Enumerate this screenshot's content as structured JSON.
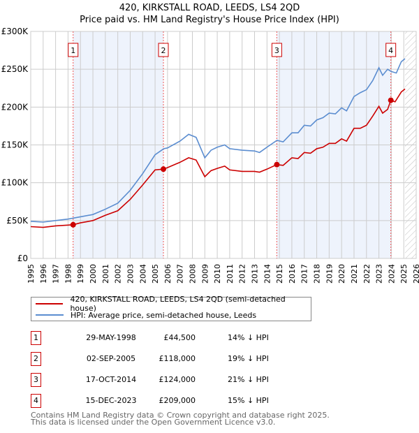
{
  "title": "420, KIRKSTALL ROAD, LEEDS, LS4 2QD",
  "subtitle": "Price paid vs. HM Land Registry's House Price Index (HPI)",
  "colors": {
    "property": "#cc0000",
    "hpi": "#5b8dd0",
    "shade": "#eef3fc",
    "marker": "#cc0000"
  },
  "chart_data": {
    "type": "line",
    "title": "420, KIRKSTALL ROAD, LEEDS, LS4 2QD",
    "subtitle": "Price paid vs. HM Land Registry's House Price Index (HPI)",
    "xlim": [
      1995,
      2026
    ],
    "ylim": [
      0,
      300000
    ],
    "y_ticks": [
      {
        "v": 0,
        "label": "£0"
      },
      {
        "v": 50000,
        "label": "£50K"
      },
      {
        "v": 100000,
        "label": "£100K"
      },
      {
        "v": 150000,
        "label": "£150K"
      },
      {
        "v": 200000,
        "label": "£200K"
      },
      {
        "v": 250000,
        "label": "£250K"
      },
      {
        "v": 300000,
        "label": "£300K"
      }
    ],
    "x_ticks": [
      "1995",
      "1996",
      "1997",
      "1998",
      "1999",
      "2000",
      "2001",
      "2002",
      "2003",
      "2004",
      "2005",
      "2006",
      "2007",
      "2008",
      "2009",
      "2010",
      "2011",
      "2012",
      "2013",
      "2014",
      "2015",
      "2016",
      "2017",
      "2018",
      "2019",
      "2020",
      "2021",
      "2022",
      "2023",
      "2024",
      "2025",
      "2026"
    ],
    "grid": true,
    "forecast_hatch_from": 2025.1,
    "shaded_ranges": [
      [
        1998.41,
        2005.67
      ],
      [
        2014.79,
        2023.96
      ]
    ],
    "series": [
      {
        "name": "420, KIRKSTALL ROAD, LEEDS, LS4 2QD (semi-detached house)",
        "color": "#cc0000",
        "x": [
          1995,
          1996,
          1997,
          1998,
          1998.41,
          1999,
          2000,
          2001,
          2002,
          2003,
          2004,
          2005,
          2005.67,
          2006,
          2007,
          2007.7,
          2008.3,
          2009,
          2009.5,
          2010,
          2010.6,
          2011,
          2012,
          2013,
          2013.4,
          2014,
          2014.79,
          2015.3,
          2016,
          2016.5,
          2017,
          2017.5,
          2018,
          2018.5,
          2019,
          2019.5,
          2020,
          2020.4,
          2021,
          2021.5,
          2022,
          2022.5,
          2023,
          2023.3,
          2023.7,
          2023.96,
          2024.3,
          2024.8,
          2025.1
        ],
        "y": [
          42000,
          41000,
          43000,
          44000,
          44500,
          47000,
          50000,
          57000,
          63000,
          78000,
          97000,
          117000,
          118000,
          120000,
          127000,
          133000,
          130000,
          108000,
          116000,
          119000,
          122000,
          117000,
          115000,
          115000,
          114000,
          118000,
          124000,
          123000,
          133000,
          132000,
          140000,
          139000,
          145000,
          147000,
          152000,
          152000,
          158000,
          155000,
          172000,
          172000,
          176000,
          188000,
          201000,
          192000,
          197000,
          209000,
          207000,
          220000,
          224000
        ]
      },
      {
        "name": "HPI: Average price, semi-detached house, Leeds",
        "color": "#5b8dd0",
        "x": [
          1995,
          1996,
          1997,
          1998,
          1999,
          2000,
          2001,
          2002,
          2003,
          2004,
          2005,
          2005.7,
          2006,
          2007,
          2007.7,
          2008.3,
          2009,
          2009.5,
          2010,
          2010.6,
          2011,
          2012,
          2013,
          2013.4,
          2014,
          2014.8,
          2015.3,
          2016,
          2016.5,
          2017,
          2017.5,
          2018,
          2018.5,
          2019,
          2019.5,
          2020,
          2020.4,
          2021,
          2021.5,
          2022,
          2022.5,
          2023,
          2023.3,
          2023.7,
          2024,
          2024.4,
          2024.8,
          2025.1
        ],
        "y": [
          49000,
          48000,
          50000,
          52000,
          55000,
          58000,
          65000,
          73000,
          90000,
          112000,
          137000,
          145000,
          146000,
          155000,
          164000,
          160000,
          133000,
          143000,
          147000,
          150000,
          145000,
          143000,
          142000,
          140000,
          147000,
          156000,
          154000,
          166000,
          166000,
          176000,
          175000,
          183000,
          186000,
          192000,
          191000,
          199000,
          195000,
          214000,
          219000,
          223000,
          235000,
          252000,
          242000,
          250000,
          247000,
          245000,
          260000,
          264000
        ]
      }
    ],
    "sales": [
      {
        "n": "1",
        "x": 1998.41,
        "y": 44500
      },
      {
        "n": "2",
        "x": 2005.67,
        "y": 118000
      },
      {
        "n": "3",
        "x": 2014.79,
        "y": 124000
      },
      {
        "n": "4",
        "x": 2023.96,
        "y": 209000
      }
    ]
  },
  "legend": {
    "property": "420, KIRKSTALL ROAD, LEEDS, LS4 2QD (semi-detached house)",
    "hpi": "HPI: Average price, semi-detached house, Leeds",
    "position": "below"
  },
  "transactions": [
    {
      "n": "1",
      "date": "29-MAY-1998",
      "price": "£44,500",
      "hpi": "14% ↓ HPI"
    },
    {
      "n": "2",
      "date": "02-SEP-2005",
      "price": "£118,000",
      "hpi": "19% ↓ HPI"
    },
    {
      "n": "3",
      "date": "17-OCT-2014",
      "price": "£124,000",
      "hpi": "21% ↓ HPI"
    },
    {
      "n": "4",
      "date": "15-DEC-2023",
      "price": "£209,000",
      "hpi": "15% ↓ HPI"
    }
  ],
  "footer": {
    "line1": "Contains HM Land Registry data © Crown copyright and database right 2025.",
    "line2": "This data is licensed under the Open Government Licence v3.0."
  }
}
